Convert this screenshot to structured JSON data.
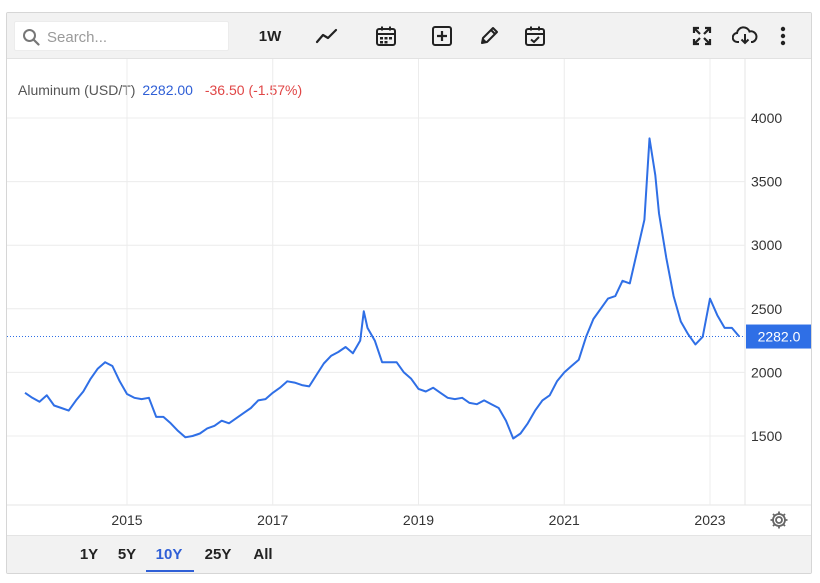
{
  "toolbar": {
    "search_placeholder": "Search...",
    "interval_label": "1W",
    "icons": [
      "line-chart-icon",
      "calendar-icon",
      "add-indicator-icon",
      "pencil-icon",
      "calendar-check-icon",
      "fullscreen-icon",
      "cloud-download-icon",
      "more-vertical-icon"
    ]
  },
  "legend": {
    "name": "Aluminum (USD/T)",
    "price": "2282.00",
    "change": "-36.50 (-1.57%)"
  },
  "colors": {
    "line": "#2f6fe6",
    "price_tag": "#2f6fe6",
    "negative": "#e04646"
  },
  "chart_data": {
    "type": "line",
    "y_ticks": [
      "4000",
      "3500",
      "3000",
      "2500",
      "2000",
      "1500"
    ],
    "x_ticks": [
      "2015",
      "2017",
      "2019",
      "2021",
      "2023"
    ],
    "ylim": [
      1000,
      4300
    ],
    "xlim": [
      2013.6,
      2023.5
    ],
    "last_value_label": "2282.0",
    "last_value": 2282,
    "grid": true,
    "series": [
      {
        "x": [
          2013.6,
          2013.7,
          2013.8,
          2013.9,
          2014.0,
          2014.1,
          2014.2,
          2014.3,
          2014.4,
          2014.5,
          2014.6,
          2014.7,
          2014.8,
          2014.9,
          2015.0,
          2015.1,
          2015.2,
          2015.3,
          2015.4,
          2015.5,
          2015.6,
          2015.7,
          2015.8,
          2015.9,
          2016.0,
          2016.1,
          2016.2,
          2016.3,
          2016.4,
          2016.5,
          2016.6,
          2016.7,
          2016.8,
          2016.9,
          2017.0,
          2017.1,
          2017.2,
          2017.3,
          2017.4,
          2017.5,
          2017.6,
          2017.7,
          2017.8,
          2017.9,
          2018.0,
          2018.1,
          2018.2,
          2018.25,
          2018.3,
          2018.4,
          2018.5,
          2018.6,
          2018.7,
          2018.8,
          2018.9,
          2019.0,
          2019.1,
          2019.2,
          2019.3,
          2019.4,
          2019.5,
          2019.6,
          2019.7,
          2019.8,
          2019.9,
          2020.0,
          2020.1,
          2020.2,
          2020.3,
          2020.4,
          2020.5,
          2020.6,
          2020.7,
          2020.8,
          2020.9,
          2021.0,
          2021.1,
          2021.2,
          2021.3,
          2021.4,
          2021.5,
          2021.6,
          2021.7,
          2021.8,
          2021.9,
          2022.0,
          2022.1,
          2022.17,
          2022.25,
          2022.3,
          2022.4,
          2022.5,
          2022.6,
          2022.7,
          2022.8,
          2022.9,
          2023.0,
          2023.1,
          2023.2,
          2023.3,
          2023.4
        ],
        "y": [
          1840,
          1800,
          1770,
          1820,
          1740,
          1720,
          1700,
          1780,
          1850,
          1950,
          2030,
          2080,
          2050,
          1930,
          1830,
          1800,
          1790,
          1800,
          1650,
          1650,
          1600,
          1540,
          1490,
          1500,
          1520,
          1560,
          1580,
          1620,
          1600,
          1640,
          1680,
          1720,
          1780,
          1790,
          1840,
          1880,
          1930,
          1920,
          1900,
          1890,
          1980,
          2070,
          2130,
          2160,
          2200,
          2150,
          2250,
          2480,
          2350,
          2250,
          2080,
          2080,
          2080,
          2000,
          1950,
          1870,
          1850,
          1880,
          1840,
          1800,
          1790,
          1800,
          1760,
          1750,
          1780,
          1750,
          1720,
          1620,
          1480,
          1520,
          1600,
          1700,
          1780,
          1820,
          1930,
          2000,
          2050,
          2100,
          2280,
          2420,
          2500,
          2580,
          2600,
          2720,
          2700,
          2950,
          3200,
          3840,
          3550,
          3250,
          2900,
          2600,
          2400,
          2300,
          2220,
          2280,
          2580,
          2450,
          2350,
          2350,
          2282
        ]
      }
    ]
  },
  "range_buttons": [
    "1Y",
    "5Y",
    "10Y",
    "25Y",
    "All"
  ],
  "range_active": "10Y"
}
